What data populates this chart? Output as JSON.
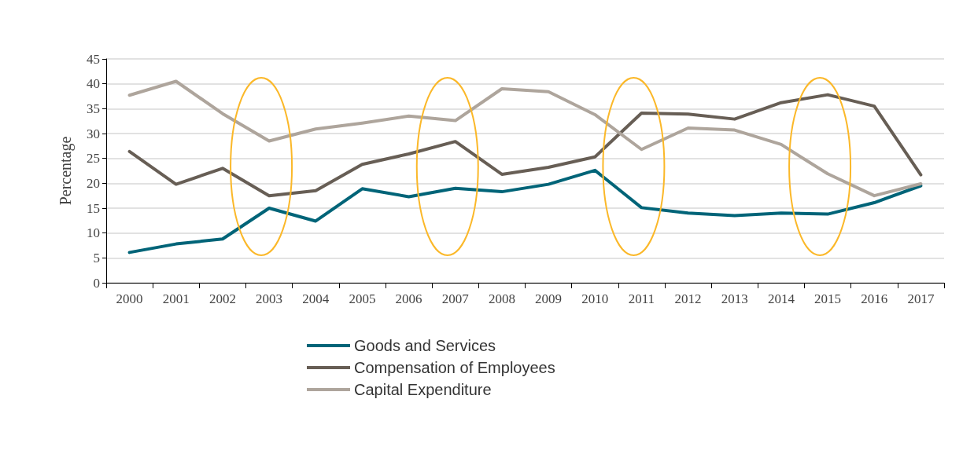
{
  "chart_data": {
    "type": "line",
    "ylabel": "Percentage",
    "categories": [
      "2000",
      "2001",
      "2002",
      "2003",
      "2004",
      "2005",
      "2006",
      "2007",
      "2008",
      "2009",
      "2010",
      "2011",
      "2012",
      "2013",
      "2014",
      "2015",
      "2016",
      "2017"
    ],
    "series": [
      {
        "name": "Goods and Services",
        "color": "#006478",
        "values": [
          6.1,
          7.8,
          8.8,
          15.0,
          12.4,
          18.9,
          17.3,
          19.0,
          18.3,
          19.8,
          22.6,
          15.1,
          14.0,
          13.5,
          14.0,
          13.8,
          16.1,
          19.5
        ]
      },
      {
        "name": "Compensation of Employees",
        "color": "#675e55",
        "values": [
          26.4,
          19.8,
          23.0,
          17.5,
          18.5,
          23.8,
          25.9,
          28.4,
          21.8,
          23.2,
          25.3,
          34.1,
          33.9,
          32.9,
          36.2,
          37.8,
          35.5,
          21.7
        ]
      },
      {
        "name": "Capital Expenditure",
        "color": "#aea59c",
        "values": [
          37.7,
          40.5,
          34.0,
          28.5,
          30.9,
          32.1,
          33.5,
          32.6,
          39.0,
          38.4,
          33.8,
          26.8,
          31.1,
          30.7,
          27.8,
          21.9,
          17.5,
          19.9
        ]
      }
    ],
    "ylim": [
      0,
      45
    ],
    "yticks": [
      0,
      5,
      10,
      15,
      20,
      25,
      30,
      35,
      40,
      45
    ],
    "grid": "y",
    "legend": "bottom",
    "marker": "none",
    "line_style": "solid"
  }
}
